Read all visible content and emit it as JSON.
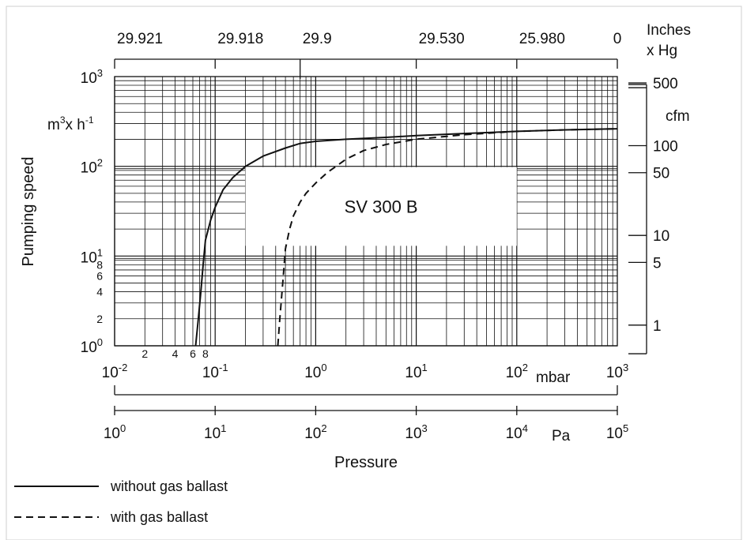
{
  "chart_data": {
    "type": "line",
    "title": "",
    "annotation": "SV 300 B",
    "ylabel": "Pumping speed",
    "yunit_left": {
      "base": "m",
      "sup1": "3",
      "mid": "x h",
      "sup2": "-1"
    },
    "yunit_right": "cfm",
    "xlabel": "Pressure",
    "x_scale": "log",
    "y_scale": "log",
    "xlim_mbar": [
      0.01,
      1000
    ],
    "ylim_m3h": [
      1,
      1000
    ],
    "grid": true,
    "x_ticks_mbar": [
      {
        "base": "10",
        "exp": "-2"
      },
      {
        "base": "10",
        "exp": "-1"
      },
      {
        "base": "10",
        "exp": "0"
      },
      {
        "base": "10",
        "exp": "1"
      },
      {
        "base": "10",
        "exp": "2"
      },
      {
        "base": "10",
        "exp": "3"
      }
    ],
    "x_minor_labels_mbar": [
      {
        "label": "2",
        "value": 0.02
      },
      {
        "label": "4",
        "value": 0.04
      },
      {
        "label": "6",
        "value": 0.06
      },
      {
        "label": "8",
        "value": 0.08
      }
    ],
    "x_unit_mbar": "mbar",
    "x_ticks_pa": [
      {
        "base": "10",
        "exp": "0"
      },
      {
        "base": "10",
        "exp": "1"
      },
      {
        "base": "10",
        "exp": "2"
      },
      {
        "base": "10",
        "exp": "3"
      },
      {
        "base": "10",
        "exp": "4"
      },
      {
        "base": "10",
        "exp": "5"
      }
    ],
    "x_unit_pa": "Pa",
    "x_ticks_inhg": [
      {
        "label": "29.921",
        "mbar": 0.01
      },
      {
        "label": "29.918",
        "mbar": 0.1
      },
      {
        "label": "29.9",
        "mbar": 0.7
      },
      {
        "label": "29.530",
        "mbar": 10
      },
      {
        "label": "25.980",
        "mbar": 100
      },
      {
        "label": "0",
        "mbar": 1000
      }
    ],
    "x_unit_inhg": [
      "Inches",
      "x Hg"
    ],
    "y_ticks_left": [
      {
        "base": "10",
        "exp": "3",
        "value": 1000
      },
      {
        "base": "10",
        "exp": "2",
        "value": 100
      },
      {
        "base": "10",
        "exp": "1",
        "value": 10
      },
      {
        "base": "10",
        "exp": "0",
        "value": 1
      }
    ],
    "y_minor_labels_left": [
      {
        "label": "8",
        "value": 8
      },
      {
        "label": "6",
        "value": 6
      },
      {
        "label": "4",
        "value": 4
      },
      {
        "label": "2",
        "value": 2
      }
    ],
    "y_ticks_right_cfm": [
      {
        "label": "500",
        "value": 500
      },
      {
        "label": "100",
        "value": 100
      },
      {
        "label": "50",
        "value": 50
      },
      {
        "label": "10",
        "value": 10
      },
      {
        "label": "5",
        "value": 5
      },
      {
        "label": "1",
        "value": 1
      }
    ],
    "series": [
      {
        "name": "without gas ballast",
        "style": "solid",
        "x_mbar": [
          0.064,
          0.068,
          0.072,
          0.076,
          0.08,
          0.09,
          0.1,
          0.12,
          0.15,
          0.2,
          0.3,
          0.5,
          0.7,
          1,
          2,
          5,
          10,
          30,
          100,
          300,
          1000
        ],
        "y_m3h": [
          1,
          2,
          4,
          8,
          15,
          25,
          35,
          55,
          75,
          100,
          130,
          160,
          180,
          190,
          200,
          210,
          220,
          232,
          245,
          255,
          262
        ]
      },
      {
        "name": "with gas ballast",
        "style": "dashed",
        "x_mbar": [
          0.42,
          0.44,
          0.47,
          0.5,
          0.55,
          0.6,
          0.7,
          0.8,
          1,
          1.3,
          2,
          3,
          5,
          10,
          30,
          100,
          300,
          1000
        ],
        "y_m3h": [
          1,
          2,
          5,
          12,
          20,
          28,
          40,
          50,
          65,
          85,
          120,
          150,
          175,
          200,
          225,
          245,
          255,
          262
        ]
      }
    ],
    "legend": [
      {
        "label": "without gas ballast",
        "style": "solid"
      },
      {
        "label": "with gas ballast",
        "style": "dashed"
      }
    ]
  }
}
